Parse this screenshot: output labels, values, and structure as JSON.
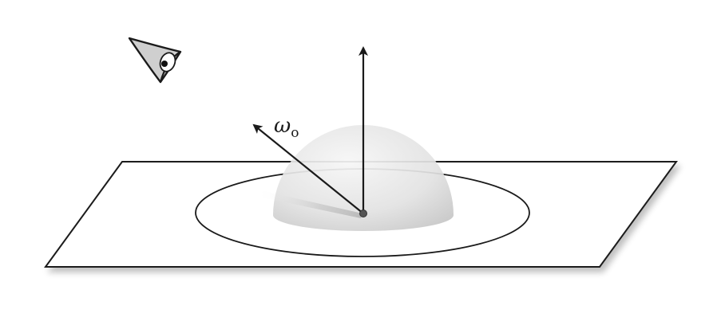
{
  "labels": {
    "outgoing_direction": "ω",
    "outgoing_subscript": "o"
  },
  "colors": {
    "plane_fill": "#ffffff",
    "plane_stroke": "#1a1a1a",
    "ellipse_stroke": "#1a1a1a",
    "hemisphere_light": "#f4f4f4",
    "hemisphere_dark": "#c9c9c9",
    "arrow": "#1a1a1a",
    "eye_fill": "#cfcfcf",
    "shadow": "#bdbdbd"
  },
  "icons": {
    "viewer": "eye-icon"
  }
}
